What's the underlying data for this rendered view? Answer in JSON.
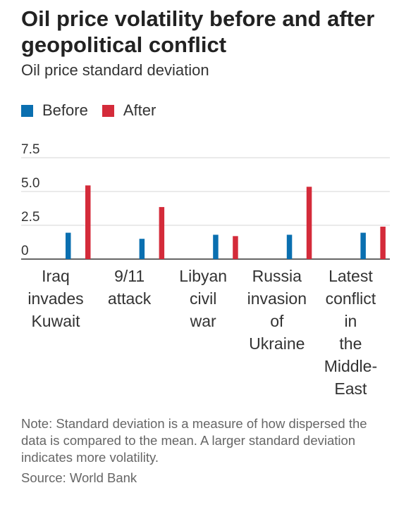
{
  "title": "Oil price volatility before and after geopolitical conflict",
  "subtitle": "Oil price standard deviation",
  "legend": [
    {
      "label": "Before",
      "color": "#0a6fb0"
    },
    {
      "label": "After",
      "color": "#d42b3a"
    }
  ],
  "chart_data": {
    "type": "bar",
    "categories": [
      [
        "Iraq",
        "invades",
        "Kuwait"
      ],
      [
        "9/11",
        "attack"
      ],
      [
        "Libyan",
        "civil",
        "war"
      ],
      [
        "Russia",
        "invasion",
        "of",
        "Ukraine"
      ],
      [
        "Latest",
        "conflict",
        "in",
        "the",
        "Middle-",
        "East"
      ]
    ],
    "series": [
      {
        "name": "Before",
        "values": [
          1.95,
          1.5,
          1.8,
          1.8,
          1.95
        ],
        "color": "#0a6fb0"
      },
      {
        "name": "After",
        "values": [
          5.45,
          3.85,
          1.7,
          5.35,
          2.4
        ],
        "color": "#d42b3a"
      }
    ],
    "yticks": [
      "7.5",
      "5.0",
      "2.5",
      "0"
    ],
    "ytick_values": [
      7.5,
      5.0,
      2.5,
      0
    ],
    "ylim": [
      0,
      7.5
    ],
    "grid": true
  },
  "note": "Note: Standard deviation is a measure of how dispersed the data is compared to the mean. A larger standard deviation indicates more volatility.",
  "source": "Source: World Bank"
}
